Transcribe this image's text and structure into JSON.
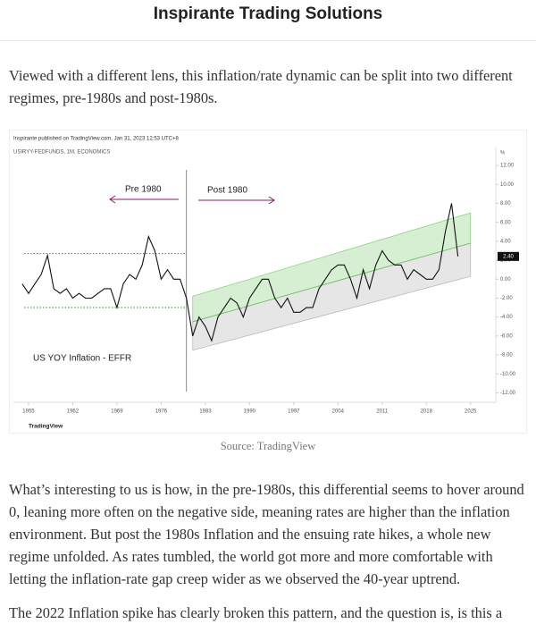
{
  "header": {
    "title": "Inspirante Trading Solutions"
  },
  "paragraphs": [
    "Viewed with a different lens, this inflation/rate dynamic can be split into two different regimes, pre-1980s and post-1980s.",
    "What’s interesting to us is how, in the pre-1980s, this differential seems to hover around 0, leaning more often on the negative side, meaning rates are higher than the inflation environment. But post the 1980s Inflation and the ensuing rate hikes, a whole new regime unfolded. As rates tumbled, the world got more and more comfortable with letting the inflation-rate gap creep wider as we observed the 40-year uptrend.",
    "The 2022 Inflation spike has clearly broken this pattern, and the question is, is this a"
  ],
  "figure": {
    "caption": "Source: TradingView",
    "chart_data": {
      "type": "line",
      "attribution": "Inspirante published on TradingView.com, Jan 31, 2023 12:53 UTC+8",
      "symbol": "USIRYY-FEDFUNDS, 1M, ECONOMICS",
      "y_unit": "%",
      "annotations": [
        "Pre 1980",
        "Post 1980",
        "US YOY Inflation - EFFR"
      ],
      "logo": "TradingView",
      "color": "#111111",
      "x": [
        1954,
        1955,
        1956,
        1957,
        1958,
        1959,
        1960,
        1961,
        1962,
        1963,
        1964,
        1965,
        1966,
        1967,
        1968,
        1969,
        1970,
        1971,
        1972,
        1973,
        1974,
        1975,
        1976,
        1977,
        1978,
        1979,
        1980,
        1981,
        1982,
        1983,
        1984,
        1985,
        1986,
        1987,
        1988,
        1989,
        1990,
        1991,
        1992,
        1993,
        1994,
        1995,
        1996,
        1997,
        1998,
        1999,
        2000,
        2001,
        2002,
        2003,
        2004,
        2005,
        2006,
        2007,
        2008,
        2009,
        2010,
        2011,
        2012,
        2013,
        2014,
        2015,
        2016,
        2017,
        2018,
        2019,
        2020,
        2021,
        2022,
        2023
      ],
      "values": [
        -0.5,
        -1.5,
        -0.5,
        0.5,
        2.5,
        -1,
        -1.5,
        -1,
        -2,
        -1.5,
        -2,
        -2,
        -1.5,
        -1,
        -1,
        -3,
        -0.5,
        0.5,
        0,
        1.5,
        4.5,
        3,
        0,
        1,
        0,
        0,
        -2,
        -6,
        -4,
        -5,
        -6.5,
        -4,
        -3,
        -2,
        -2.5,
        -4,
        -2,
        -1,
        0,
        0,
        -2,
        -3,
        -2,
        -3.5,
        -3.5,
        -3,
        -3,
        -1,
        0,
        1,
        1.5,
        1.5,
        0,
        -2,
        1,
        -1,
        1.5,
        3,
        2,
        1.5,
        1.5,
        0,
        1,
        0.5,
        0,
        0,
        1,
        5,
        8,
        2.4
      ],
      "last_label": {
        "value": 2.4,
        "label": "2.40"
      },
      "divider_x": 1980,
      "reference_lines": [
        2.7,
        -3
      ],
      "channel_x": [
        1981,
        2025
      ],
      "channel_upper": [
        -1.8,
        7
      ],
      "channel_mid": [
        -4.5,
        3.8
      ],
      "channel_lower": [
        -7.5,
        0.3
      ],
      "xlim": [
        1952.6,
        2029
      ],
      "xticks": [
        1955,
        1962,
        1969,
        1976,
        1983,
        1990,
        1997,
        2004,
        2011,
        2018,
        2025
      ],
      "ylim": [
        -13,
        13.9
      ],
      "yticks": [
        {
          "value": 12,
          "label": "12.00"
        },
        {
          "value": 10,
          "label": "10.00"
        },
        {
          "value": 8,
          "label": "8.00"
        },
        {
          "value": 6,
          "label": "6.00"
        },
        {
          "value": 4,
          "label": "4.00"
        },
        {
          "value": 2,
          "label": "2.00"
        },
        {
          "value": 0,
          "label": "0.00"
        },
        {
          "value": -2,
          "label": "-2.00"
        },
        {
          "value": -4,
          "label": "-4.00"
        },
        {
          "value": -6,
          "label": "-6.00"
        },
        {
          "value": -8,
          "label": "-8.00"
        },
        {
          "value": -10,
          "label": "-10.00"
        },
        {
          "value": -12,
          "label": "-12.00"
        }
      ]
    }
  }
}
